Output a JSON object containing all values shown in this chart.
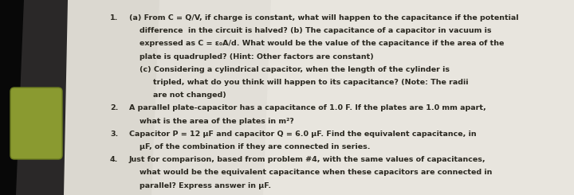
{
  "figsize": [
    7.2,
    2.45
  ],
  "dpi": 100,
  "bg_dark": "#1a1a1a",
  "paper_color": "#d8d4cc",
  "paper_light": "#e4e0d8",
  "text_color": "#2a2820",
  "shadow_color": "#4a4840",
  "green_color": "#8a9a30",
  "font_size": 6.8,
  "font_family": "DejaVu Sans",
  "lines": [
    {
      "num": "1.",
      "indent": 0,
      "text": "(a) From C = Q/V, if charge is constant, what will happen to the capacitance if the potential"
    },
    {
      "num": "",
      "indent": 1,
      "text": "difference  in the circuit is halved? (b) The capacitance of a capacitor in vacuum is"
    },
    {
      "num": "",
      "indent": 1,
      "text": "expressed as C = ε₀A/d. What would be the value of the capacitance if the area of the"
    },
    {
      "num": "",
      "indent": 1,
      "text": "plate is quadrupled? (Hint: Other factors are constant)"
    },
    {
      "num": "",
      "indent": 1,
      "text": "(c) Considering a cylindrical capacitor, when the length of the cylinder is"
    },
    {
      "num": "",
      "indent": 2,
      "text": "tripled, what do you think will happen to its capacitance? (Note: The radii"
    },
    {
      "num": "",
      "indent": 2,
      "text": "are not changed)"
    },
    {
      "num": "2.",
      "indent": 0,
      "text": "A parallel plate-capacitor has a capacitance of 1.0 F. If the plates are 1.0 mm apart,"
    },
    {
      "num": "",
      "indent": 1,
      "text": "what is the area of the plates in m²?"
    },
    {
      "num": "3.",
      "indent": 0,
      "text": "Capacitor P = 12 μF and capacitor Q = 6.0 μF. Find the equivalent capacitance, in"
    },
    {
      "num": "",
      "indent": 1,
      "text": "μF, of the combination if they are connected in series."
    },
    {
      "num": "4.",
      "indent": 0,
      "text": "Just for comparison, based from problem #4, with the same values of capacitances,"
    },
    {
      "num": "",
      "indent": 1,
      "text": "what would be the equivalent capacitance when these capacitors are connected in"
    },
    {
      "num": "",
      "indent": 1,
      "text": "parallel? Express answer in μF."
    }
  ]
}
